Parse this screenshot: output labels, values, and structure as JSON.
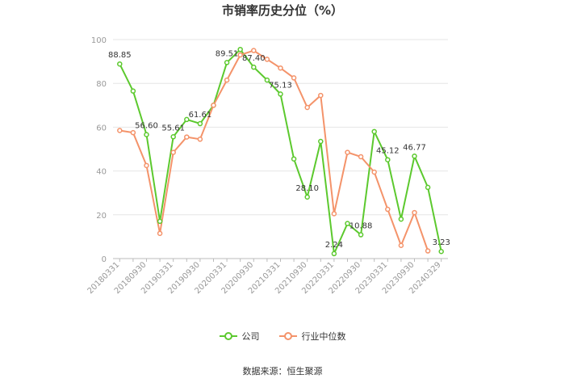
{
  "chart_data": {
    "type": "line",
    "title": "市销率历史分位（%）",
    "source": "数据来源：恒生聚源",
    "ylim": [
      0,
      100
    ],
    "yticks": [
      "0",
      "20",
      "40",
      "60",
      "80",
      "100"
    ],
    "x": [
      "20180331",
      "20180630",
      "20180930",
      "20181231",
      "20190331",
      "20190630",
      "20190930",
      "20191231",
      "20200331",
      "20200630",
      "20200930",
      "20201231",
      "20210331",
      "20210630",
      "20210930",
      "20211231",
      "20220331",
      "20220630",
      "20220930",
      "20221231",
      "20230331",
      "20230630",
      "20230930",
      "20231231",
      "20240329"
    ],
    "xtick_labels": [
      "20180331",
      "20180930",
      "20190331",
      "20190930",
      "20200331",
      "20200930",
      "20210331",
      "20210930",
      "20220331",
      "20220930",
      "20230331",
      "20230930",
      "20240329"
    ],
    "series": [
      {
        "name": "公司",
        "color": "#5CC92E",
        "values": [
          88.85,
          76.5,
          56.6,
          17.0,
          55.61,
          63.5,
          61.61,
          70.0,
          89.51,
          95.5,
          87.4,
          81.5,
          75.13,
          45.5,
          28.1,
          53.5,
          2.24,
          16.0,
          10.88,
          58.0,
          45.12,
          18.0,
          46.77,
          32.5,
          3.23
        ],
        "labels": {
          "0": "88.85",
          "2": "56.60",
          "4": "55.61",
          "6": "61.61",
          "8": "89.51",
          "10": "87.40",
          "12": "75.13",
          "14": "28.10",
          "16": "2.24",
          "18": "10.88",
          "20": "45.12",
          "22": "46.77",
          "24": "3.23"
        }
      },
      {
        "name": "行业中位数",
        "color": "#F4936A",
        "values": [
          58.5,
          57.5,
          42.5,
          11.5,
          48.5,
          55.5,
          54.5,
          70.0,
          81.5,
          93.0,
          95.0,
          91.0,
          87.0,
          82.5,
          69.0,
          74.5,
          20.5,
          48.5,
          46.5,
          39.5,
          22.5,
          6.0,
          21.0,
          3.5,
          null
        ]
      }
    ],
    "grid": "horizontal",
    "legend_position": "bottom-center"
  }
}
